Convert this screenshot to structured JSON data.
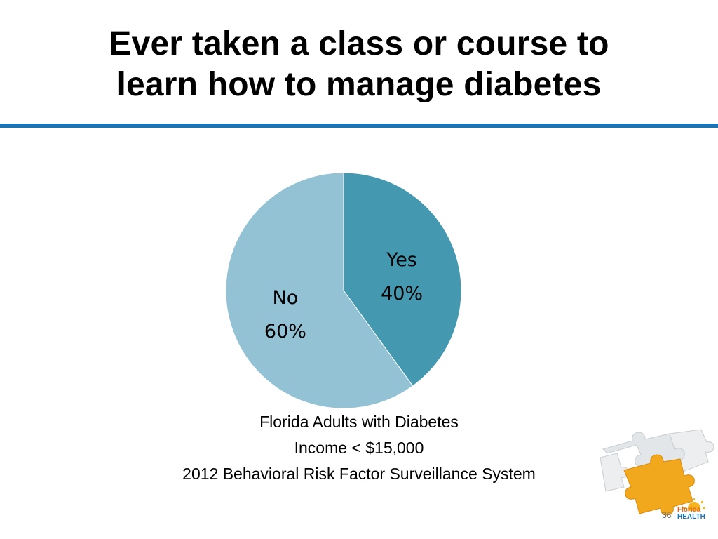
{
  "slide": {
    "title_line_1": "Ever taken a class or course to",
    "title_line_2": "learn how to manage diabetes",
    "rule_color": "#1a73b5",
    "slide_number": "36"
  },
  "caption": {
    "line_1": "Florida Adults with Diabetes",
    "line_2": "Income < $15,000",
    "line_3": "2012 Behavioral Risk Factor Surveillance System"
  },
  "logo": {
    "icon": "puzzle-pieces-icon",
    "text_line_1": "Florida",
    "text_line_2": "HEALTH"
  },
  "chart_data": {
    "type": "pie",
    "title": "",
    "slices": [
      {
        "label": "Yes",
        "value": 40,
        "display": "40%",
        "color": "#4499b1"
      },
      {
        "label": "No",
        "value": 60,
        "display": "60%",
        "color": "#92c2d4"
      }
    ],
    "start_angle": "12 o'clock",
    "direction": "clockwise",
    "legend": "none"
  }
}
